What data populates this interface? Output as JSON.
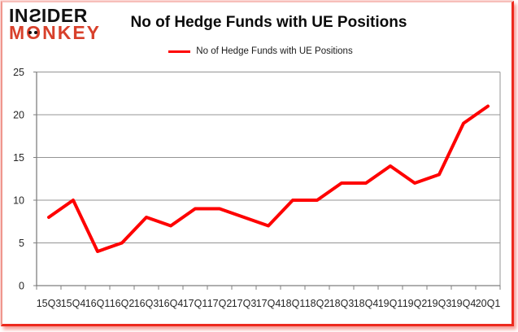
{
  "logo": {
    "line1": "INSIDER",
    "line2": "MONKEY"
  },
  "header": {
    "title": "No of Hedge Funds with UE Positions"
  },
  "legend": {
    "label": "No of Hedge Funds with UE Positions",
    "swatch_color": "#fe0000"
  },
  "colors": {
    "series_red": "#fe0000",
    "logo_black": "#111111",
    "logo_red": "#d8402b",
    "grid": "#949494",
    "axis": "#7f7f7f",
    "label_text": "#262626",
    "frame_red": "#ed2a1e"
  },
  "axes": {
    "y_tick_labels": [
      "0",
      "5",
      "10",
      "15",
      "20",
      "25"
    ],
    "x_tick_labels": [
      "15Q3",
      "15Q4",
      "16Q1",
      "16Q2",
      "16Q3",
      "16Q4",
      "17Q1",
      "17Q2",
      "17Q3",
      "17Q4",
      "18Q1",
      "18Q2",
      "18Q3",
      "18Q4",
      "19Q1",
      "19Q2",
      "19Q3",
      "19Q4",
      "20Q1"
    ]
  },
  "chart_data": {
    "type": "line",
    "title": "No of Hedge Funds with UE Positions",
    "categories": [
      "15Q3",
      "15Q4",
      "16Q1",
      "16Q2",
      "16Q3",
      "16Q4",
      "17Q1",
      "17Q2",
      "17Q3",
      "17Q4",
      "18Q1",
      "18Q2",
      "18Q3",
      "18Q4",
      "19Q1",
      "19Q2",
      "19Q3",
      "19Q4",
      "20Q1"
    ],
    "series": [
      {
        "name": "No of Hedge Funds with UE Positions",
        "color": "#fe0000",
        "values": [
          8,
          10,
          4,
          5,
          8,
          7,
          9,
          9,
          8,
          7,
          10,
          10,
          12,
          12,
          14,
          12,
          13,
          19,
          21
        ]
      }
    ],
    "xlabel": "",
    "ylabel": "",
    "ylim": [
      0,
      25
    ],
    "ytick_step": 5,
    "grid": true,
    "legend_position": "top-center"
  }
}
